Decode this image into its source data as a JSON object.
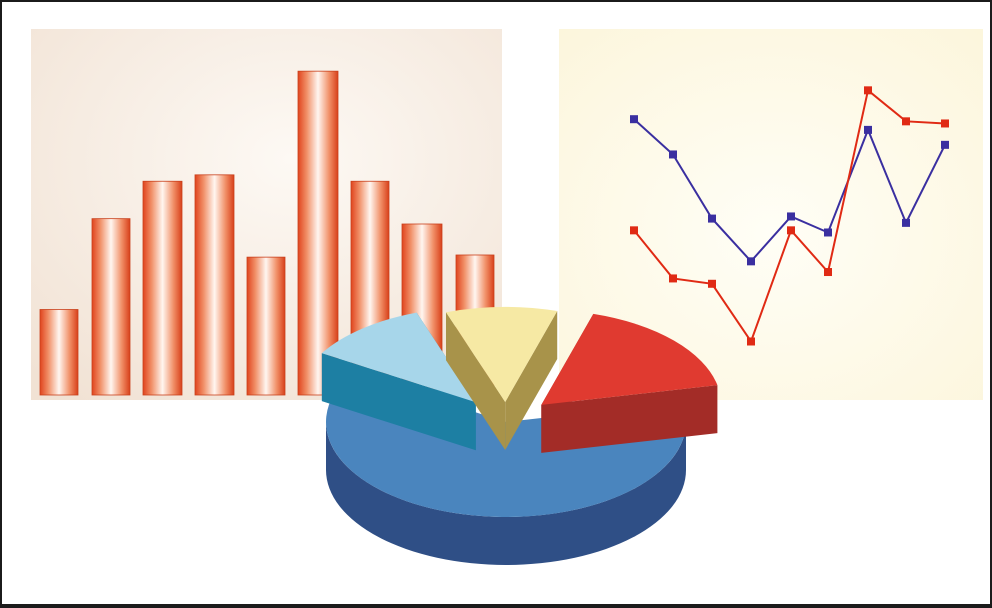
{
  "chart_data": [
    {
      "type": "bar",
      "values": [
        80,
        165,
        200,
        206,
        129,
        303,
        200,
        160,
        131
      ],
      "ylim": [
        0,
        320
      ],
      "grid": false,
      "background": "#f3e3d6",
      "bar_color": "#e2502a"
    },
    {
      "type": "line",
      "x": [
        1,
        2,
        3,
        4,
        5,
        6,
        7,
        8,
        9
      ],
      "ylim": [
        0,
        320
      ],
      "grid": false,
      "background": "#fdf6dc",
      "series": [
        {
          "values": [
            259,
            226,
            166,
            126,
            168,
            153,
            249,
            162,
            235
          ],
          "color": "#3a2fa0"
        },
        {
          "values": [
            155,
            110,
            105,
            51,
            155,
            116,
            286,
            257,
            255
          ],
          "color": "#e02a14"
        }
      ]
    },
    {
      "type": "pie",
      "values": [
        62,
        11,
        10,
        17
      ],
      "slice_colors": [
        "#4a85be",
        "#a7d6ea",
        "#f6e9a4",
        "#e03a30"
      ],
      "style": "3d-exploded"
    }
  ]
}
